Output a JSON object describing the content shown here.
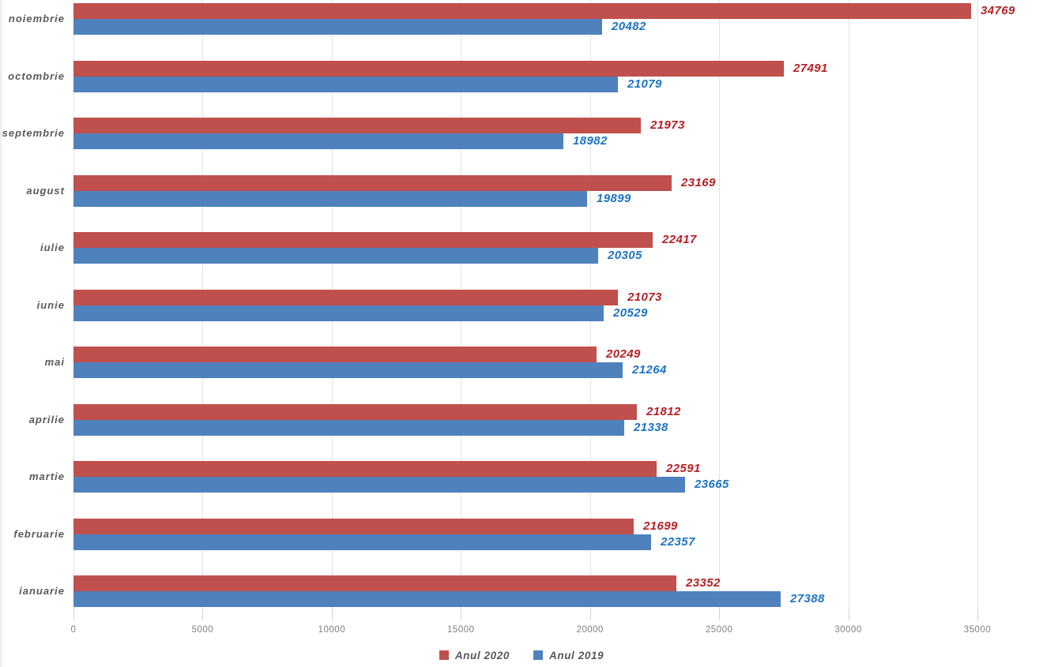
{
  "chart_data": {
    "type": "bar",
    "orientation": "horizontal",
    "categories_top_to_bottom": [
      "noiembrie",
      "octombrie",
      "septembrie",
      "august",
      "iulie",
      "iunie",
      "mai",
      "aprilie",
      "martie",
      "februarie",
      "ianuarie"
    ],
    "series": [
      {
        "name": "Anul 2020",
        "color": "#C0504D",
        "label_color": "#B52025",
        "values": [
          34769,
          27491,
          21973,
          23169,
          22417,
          21073,
          20249,
          21812,
          22591,
          21699,
          23352
        ]
      },
      {
        "name": "Anul 2019",
        "color": "#4F81BD",
        "label_color": "#1D73C4",
        "values": [
          20482,
          21079,
          18982,
          19899,
          20305,
          20529,
          21264,
          21338,
          23665,
          22357,
          27388
        ]
      }
    ],
    "x_axis": {
      "min": 0,
      "max": 35000,
      "step": 5000,
      "tick_labels": [
        "0",
        "5000",
        "10000",
        "15000",
        "20000",
        "25000",
        "30000",
        "35000"
      ]
    },
    "grid": true,
    "legend_position": "bottom",
    "data_labels_shown": true,
    "styles": {
      "gridline_color": "#E3E3E3",
      "axis_tick_color": "#D2D2D2",
      "category_label_color": "#595959",
      "tick_label_color": "#7F7F7F",
      "legend_text_color": "#595959",
      "background": "#FFFFFF"
    }
  }
}
